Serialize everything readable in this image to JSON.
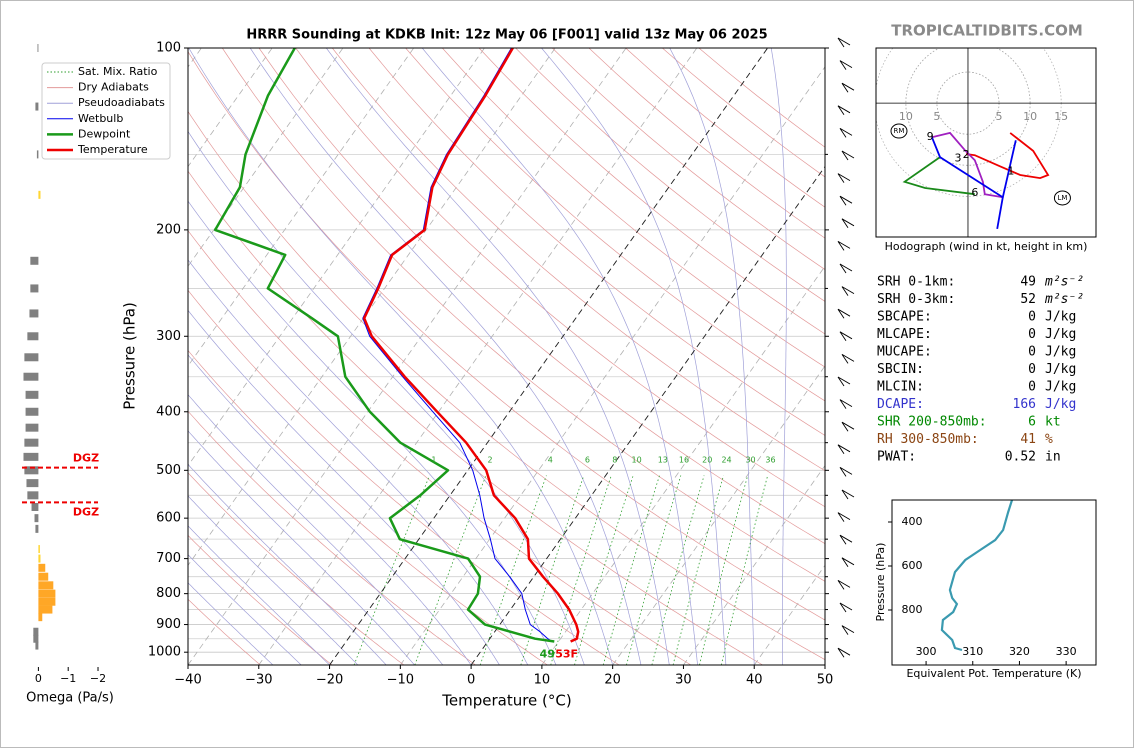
{
  "site": "TROPICALTIDBITS.COM",
  "chart_data": [
    {
      "type": "skewt",
      "title": "HRRR Sounding at KDKB Init: 12z May 06 [F001] valid 13z May 06 2025",
      "xlabel": "Temperature (°C)",
      "ylabel": "Pressure (hPa)",
      "xlim": [
        -40,
        50
      ],
      "ylim": [
        1050,
        100
      ],
      "xticks": [
        {
          "value": -40,
          "label": "−40"
        },
        {
          "value": -30,
          "label": "−30"
        },
        {
          "value": -20,
          "label": "−20"
        },
        {
          "value": -10,
          "label": "−10"
        },
        0,
        10,
        20,
        30,
        40,
        50
      ],
      "yticks": [
        100,
        200,
        300,
        400,
        500,
        600,
        700,
        800,
        900,
        1000
      ],
      "minor_yticks": [
        150,
        250,
        350,
        450,
        550,
        650,
        750,
        850,
        950
      ],
      "highlight_isotherms": [
        -20,
        0
      ],
      "mixing_ratios": [
        1,
        2,
        4,
        6,
        8,
        10,
        13,
        16,
        20,
        24,
        30,
        36
      ],
      "background_lines": [
        {
          "name": "Sat. Mix. Ratio",
          "color": "#2e9e2e",
          "linestyle": "dotted"
        },
        {
          "name": "Dry Adiabats",
          "color": "#e39a9a",
          "linestyle": "solid"
        },
        {
          "name": "Pseudoadiabats",
          "color": "#a0a0d8",
          "linestyle": "solid"
        }
      ],
      "pressure": [
        960,
        950,
        925,
        900,
        850,
        800,
        750,
        700,
        650,
        600,
        550,
        500,
        450,
        400,
        350,
        300,
        280,
        250,
        220,
        200,
        170,
        150,
        120,
        100
      ],
      "series": [
        {
          "name": "Wetbulb",
          "color": "#0000ee",
          "linewidth": 1,
          "values": [
            9.1,
            8.2,
            6.4,
            4.3,
            2.1,
            0.0,
            -3.4,
            -7.3,
            -9.9,
            -12.9,
            -15.8,
            -19.3,
            -23.9,
            -30.8,
            -38.6,
            -47.3,
            -50.1,
            -51.1,
            -52.5,
            -50.4,
            -53.6,
            -54.7,
            -55.3,
            -56.2
          ]
        },
        {
          "name": "Dewpoint",
          "color": "#1a9a1a",
          "linewidth": 2.5,
          "values": [
            9.4,
            6.4,
            2.2,
            -2.1,
            -6.0,
            -6.2,
            -7.6,
            -11.1,
            -22.7,
            -26.2,
            -24.2,
            -22.8,
            -32.3,
            -39.7,
            -46.7,
            -51.8,
            -57.3,
            -66.5,
            -67.4,
            -79.8,
            -80.6,
            -83.1,
            -85.8,
            -86.8
          ]
        },
        {
          "name": "Temperature",
          "color": "#ee0000",
          "linewidth": 2.5,
          "values": [
            11.7,
            12.3,
            11.8,
            10.8,
            8.3,
            5.1,
            1.3,
            -2.5,
            -4.6,
            -8.5,
            -13.8,
            -17.4,
            -23.0,
            -30.2,
            -38.3,
            -47.0,
            -49.9,
            -50.9,
            -52.3,
            -50.2,
            -53.4,
            -54.5,
            -55.1,
            -56.0
          ]
        }
      ],
      "dewpoint_surface_label": "49",
      "temperature_surface_label": "53F"
    },
    {
      "type": "omega",
      "xlabel": "Omega (Pa/s)",
      "xlim": [
        0.55,
        -2.1
      ],
      "ylim": [
        1050,
        100
      ],
      "xticks": [
        0,
        {
          "value": -1,
          "label": "−1"
        },
        {
          "value": -2,
          "label": "−2"
        }
      ],
      "pressure": [
        100,
        125,
        150,
        175,
        225,
        250,
        275,
        300,
        325,
        350,
        375,
        400,
        425,
        450,
        475,
        500,
        525,
        550,
        575,
        600,
        625,
        675,
        700,
        725,
        750,
        775,
        800,
        825,
        850,
        875,
        925,
        950,
        975
      ],
      "values": [
        0.03,
        0.1,
        0.05,
        -0.07,
        0.27,
        0.27,
        0.3,
        0.37,
        0.47,
        0.5,
        0.43,
        0.43,
        0.43,
        0.47,
        0.5,
        0.47,
        0.4,
        0.37,
        0.23,
        0.13,
        0.1,
        -0.05,
        -0.07,
        -0.23,
        -0.33,
        -0.5,
        -0.57,
        -0.57,
        -0.47,
        -0.13,
        0.17,
        0.17,
        0.1
      ],
      "colors": [
        "#808080",
        "#808080",
        "#808080",
        "#ffd633",
        "#808080",
        "#808080",
        "#808080",
        "#808080",
        "#808080",
        "#808080",
        "#808080",
        "#808080",
        "#808080",
        "#808080",
        "#808080",
        "#808080",
        "#808080",
        "#808080",
        "#808080",
        "#808080",
        "#808080",
        "#ffd633",
        "#ffd633",
        "#ffa726",
        "#ffa726",
        "#ffa726",
        "#ffa726",
        "#ffa726",
        "#ffa726",
        "#ffa726",
        "#808080",
        "#808080",
        "#808080"
      ],
      "dgz": {
        "label": "DGZ",
        "pressures": [
          495,
          565
        ],
        "color": "#ee0000"
      }
    },
    {
      "type": "hodograph",
      "caption": "Hodograph (wind in kt, height in km)",
      "xlim": [
        -14.8,
        20.6
      ],
      "ylim": [
        -21.6,
        8.9
      ],
      "xticks": [
        {
          "value": -10,
          "label": "10"
        },
        {
          "value": -5,
          "label": "5"
        },
        5,
        10,
        15
      ],
      "segments": [
        {
          "color": "#ee0000",
          "u": [
            6.8,
            10.5,
            12.9,
            11.6,
            8.4,
            5.2,
            1.1,
            -0.3
          ],
          "v": [
            -4.8,
            -7.7,
            -11.6,
            -12.1,
            -11.6,
            -10.2,
            -8.4,
            -8.2
          ]
        },
        {
          "color": "#1a8a1a",
          "u": [
            -4.5,
            -10.2,
            -6.9,
            1.1
          ],
          "v": [
            -8.7,
            -12.7,
            -13.7,
            -14.7
          ]
        },
        {
          "color": "#a020c0",
          "u": [
            5.6,
            2.7,
            2.4,
            1.1,
            -0.5,
            -2.9,
            -5.8
          ],
          "v": [
            -15.2,
            -14.7,
            -12.7,
            -9.2,
            -7.6,
            -4.8,
            -5.5
          ]
        },
        {
          "color": "#0000ee",
          "u": [
            -5.8,
            -4.5,
            5.6,
            4.7
          ],
          "v": [
            -5.5,
            -8.7,
            -15.2,
            -20.3
          ]
        },
        {
          "color": "#0000ee",
          "u": [
            5.6,
            7.7
          ],
          "v": [
            -15.2,
            -6.0
          ]
        }
      ],
      "height_labels": [
        {
          "height": 1,
          "u": 6.9,
          "v": -11.0
        },
        {
          "height": 2,
          "u": -0.3,
          "v": -8.4
        },
        {
          "height": 3,
          "u": -1.6,
          "v": -8.9
        },
        {
          "height": 6,
          "u": 1.1,
          "v": -14.5
        },
        {
          "height": 9,
          "u": -6.1,
          "v": -5.5
        }
      ],
      "storm_motion": [
        {
          "label": "RM",
          "u": -11.1,
          "v": -4.5
        },
        {
          "label": "LM",
          "u": 15.2,
          "v": -15.3
        }
      ]
    },
    {
      "type": "line",
      "xlabel": "Equivalent Pot. Temperature (K)",
      "ylabel": "Pressure (hPa)",
      "xlim": [
        292.7,
        336.4
      ],
      "ylim": [
        1050,
        300
      ],
      "xticks": [
        300,
        310,
        320,
        330
      ],
      "yticks": [
        400,
        600,
        800
      ],
      "color": "#3a9ab0",
      "pressure": [
        300,
        354.5,
        436.4,
        481.8,
        527.3,
        572.7,
        627.3,
        709.1,
        745.5,
        772.7,
        809.1,
        845.5,
        890.9,
        936.4,
        972.7,
        981.8
      ],
      "values": [
        318.4,
        317.6,
        316.5,
        314.8,
        311.6,
        308.4,
        306.2,
        305.1,
        305.6,
        306.6,
        305.8,
        303.6,
        303.4,
        305.6,
        306.2,
        307.7
      ]
    }
  ],
  "stats": [
    {
      "label": "SRH 0-1km:",
      "value": 49,
      "unit": "m²s⁻²",
      "color": "#000000"
    },
    {
      "label": "SRH 0-3km:",
      "value": 52,
      "unit": "m²s⁻²",
      "color": "#000000"
    },
    {
      "label": "SBCAPE:",
      "value": 0,
      "unit": "J/kg",
      "color": "#000000"
    },
    {
      "label": "MLCAPE:",
      "value": 0,
      "unit": "J/kg",
      "color": "#000000"
    },
    {
      "label": "MUCAPE:",
      "value": 0,
      "unit": "J/kg",
      "color": "#000000"
    },
    {
      "label": "SBCIN:",
      "value": 0,
      "unit": "J/kg",
      "color": "#000000"
    },
    {
      "label": "MLCIN:",
      "value": 0,
      "unit": "J/kg",
      "color": "#000000"
    },
    {
      "label": "DCAPE:",
      "value": 166,
      "unit": "J/kg",
      "color": "#3333cc"
    },
    {
      "label": "SHR 200-850mb:",
      "value": 6,
      "unit": "kt",
      "color": "#008800"
    },
    {
      "label": "RH 300-850mb:",
      "value": 41,
      "unit": "%",
      "color": "#8b4513"
    },
    {
      "label": "PWAT:",
      "value": 0.52,
      "unit": "in",
      "color": "#000000"
    }
  ]
}
